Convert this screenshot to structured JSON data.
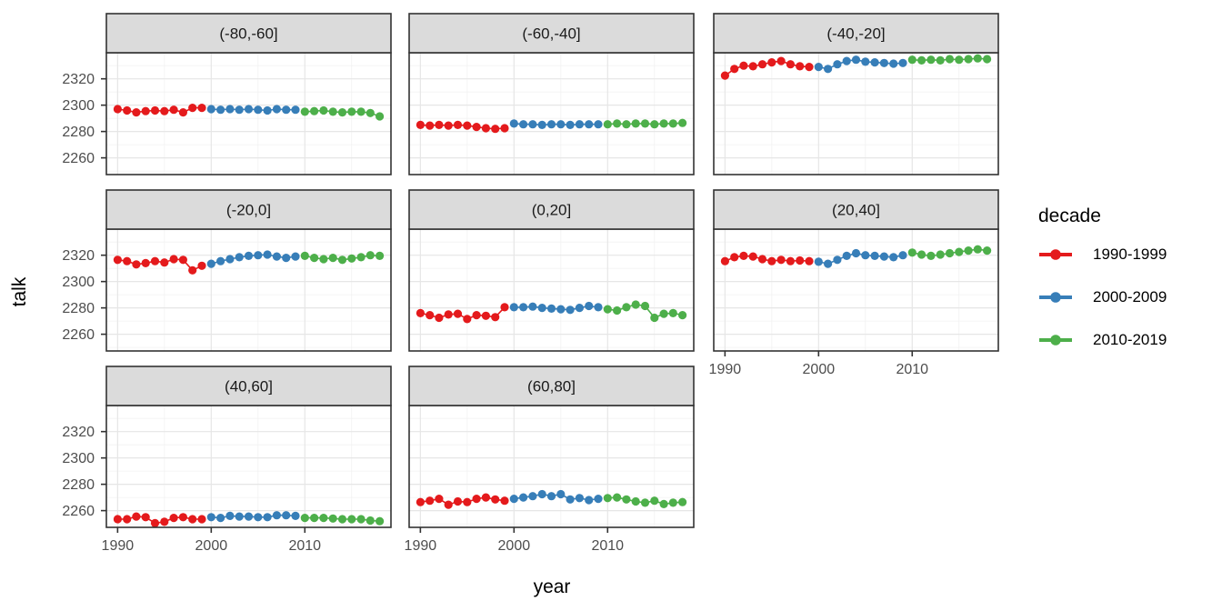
{
  "chart_data": {
    "type": "scatter",
    "title": "",
    "xlabel": "year",
    "ylabel": "talk",
    "xlim": [
      1988.8,
      2019.2
    ],
    "ylim": [
      2247.3,
      2339.8
    ],
    "x_ticks": [
      1990,
      2000,
      2010
    ],
    "x_minor": [
      1995,
      2005,
      2015
    ],
    "y_ticks": [
      2260,
      2280,
      2300,
      2320
    ],
    "y_minor": [
      2250,
      2270,
      2290,
      2310,
      2330
    ],
    "grid": "major+minor",
    "legend": {
      "title": "decade",
      "position": "right",
      "entries": [
        {
          "label": "1990-1999",
          "color": "#E41A1C"
        },
        {
          "label": "2000-2009",
          "color": "#377EB8"
        },
        {
          "label": "2010-2019",
          "color": "#4DAF4A"
        }
      ]
    },
    "facets": [
      {
        "label": "(-80,-60]",
        "series": [
          {
            "name": "1990-1999",
            "color": "#E41A1C",
            "x_start": 1990,
            "values": [
              2297,
              2296,
              2294.5,
              2295.5,
              2296,
              2295.5,
              2296.5,
              2294.5,
              2298,
              2298
            ]
          },
          {
            "name": "2000-2009",
            "color": "#377EB8",
            "x_start": 2000,
            "values": [
              2297,
              2296.5,
              2297,
              2296.5,
              2297,
              2296.5,
              2296,
              2297,
              2296.5,
              2296.5
            ]
          },
          {
            "name": "2010-2019",
            "color": "#4DAF4A",
            "x_start": 2010,
            "values": [
              2295,
              2295.5,
              2296,
              2295,
              2294.5,
              2295,
              2295,
              2294,
              2291.5
            ]
          }
        ]
      },
      {
        "label": "(-60,-40]",
        "series": [
          {
            "name": "1990-1999",
            "color": "#E41A1C",
            "x_start": 1990,
            "values": [
              2285,
              2284.5,
              2285,
              2284.5,
              2285,
              2284.5,
              2283.5,
              2282.5,
              2282,
              2282.5
            ]
          },
          {
            "name": "2000-2009",
            "color": "#377EB8",
            "x_start": 2000,
            "values": [
              2286,
              2285.5,
              2285.5,
              2285,
              2285.5,
              2285.5,
              2285,
              2285.5,
              2285.5,
              2285.5
            ]
          },
          {
            "name": "2010-2019",
            "color": "#4DAF4A",
            "x_start": 2010,
            "values": [
              2285.5,
              2286,
              2285.5,
              2286,
              2286,
              2285.5,
              2286,
              2286,
              2286.5
            ]
          }
        ]
      },
      {
        "label": "(-40,-20]",
        "series": [
          {
            "name": "1990-1999",
            "color": "#E41A1C",
            "x_start": 1990,
            "values": [
              2322.5,
              2327.5,
              2330,
              2329.5,
              2331,
              2332.5,
              2333.5,
              2331,
              2329.5,
              2329
            ]
          },
          {
            "name": "2000-2009",
            "color": "#377EB8",
            "x_start": 2000,
            "values": [
              2329,
              2327.5,
              2331,
              2333.5,
              2334.5,
              2333,
              2332.5,
              2332,
              2331.5,
              2332
            ]
          },
          {
            "name": "2010-2019",
            "color": "#4DAF4A",
            "x_start": 2010,
            "values": [
              2334.5,
              2334,
              2334.5,
              2334,
              2335,
              2334.5,
              2335,
              2335.5,
              2335
            ]
          }
        ]
      },
      {
        "label": "(-20,0]",
        "series": [
          {
            "name": "1990-1999",
            "color": "#E41A1C",
            "x_start": 1990,
            "values": [
              2316.5,
              2315.5,
              2313,
              2314,
              2315.5,
              2314.5,
              2317,
              2316.5,
              2308.5,
              2312
            ]
          },
          {
            "name": "2000-2009",
            "color": "#377EB8",
            "x_start": 2000,
            "values": [
              2313.5,
              2315.5,
              2317,
              2318.5,
              2319.5,
              2320,
              2320.5,
              2319,
              2318,
              2319
            ]
          },
          {
            "name": "2010-2019",
            "color": "#4DAF4A",
            "x_start": 2010,
            "values": [
              2319.5,
              2318,
              2317,
              2318,
              2316.5,
              2317.5,
              2318.5,
              2320,
              2319.5
            ]
          }
        ]
      },
      {
        "label": "(0,20]",
        "series": [
          {
            "name": "1990-1999",
            "color": "#E41A1C",
            "x_start": 1990,
            "values": [
              2276,
              2274.5,
              2272.5,
              2275,
              2275.5,
              2271.5,
              2274.5,
              2274,
              2273,
              2280.5
            ]
          },
          {
            "name": "2000-2009",
            "color": "#377EB8",
            "x_start": 2000,
            "values": [
              2280.5,
              2280.5,
              2281,
              2280,
              2279.5,
              2279,
              2278.5,
              2280,
              2281.5,
              2280.5
            ]
          },
          {
            "name": "2010-2019",
            "color": "#4DAF4A",
            "x_start": 2010,
            "values": [
              2279,
              2278,
              2280.5,
              2282.5,
              2281.5,
              2272.5,
              2275.5,
              2276,
              2274.5
            ]
          }
        ]
      },
      {
        "label": "(20,40]",
        "series": [
          {
            "name": "1990-1999",
            "color": "#E41A1C",
            "x_start": 1990,
            "values": [
              2315.5,
              2318.5,
              2319.5,
              2319,
              2317,
              2315.5,
              2316.5,
              2315.5,
              2316,
              2315.5
            ]
          },
          {
            "name": "2000-2009",
            "color": "#377EB8",
            "x_start": 2000,
            "values": [
              2315,
              2313.5,
              2316.5,
              2319.5,
              2321.5,
              2320,
              2319.5,
              2319,
              2318.5,
              2320
            ]
          },
          {
            "name": "2010-2019",
            "color": "#4DAF4A",
            "x_start": 2010,
            "values": [
              2322,
              2320.5,
              2319.5,
              2320.5,
              2321.5,
              2322.5,
              2323.5,
              2324.5,
              2323.5
            ]
          }
        ]
      },
      {
        "label": "(40,60]",
        "series": [
          {
            "name": "1990-1999",
            "color": "#E41A1C",
            "x_start": 1990,
            "values": [
              2253.5,
              2253.5,
              2255.5,
              2255,
              2250.5,
              2251.5,
              2254.5,
              2255,
              2253.5,
              2253.5
            ]
          },
          {
            "name": "2000-2009",
            "color": "#377EB8",
            "x_start": 2000,
            "values": [
              2255,
              2254.5,
              2256,
              2255.5,
              2255.5,
              2255,
              2255,
              2256.5,
              2256.5,
              2256
            ]
          },
          {
            "name": "2010-2019",
            "color": "#4DAF4A",
            "x_start": 2010,
            "values": [
              2254.5,
              2254.5,
              2254.5,
              2254,
              2253.5,
              2253.5,
              2253.5,
              2252.5,
              2252
            ]
          }
        ]
      },
      {
        "label": "(60,80]",
        "series": [
          {
            "name": "1990-1999",
            "color": "#E41A1C",
            "x_start": 1990,
            "values": [
              2266.5,
              2267.5,
              2269,
              2264.5,
              2267,
              2266.5,
              2269,
              2270,
              2268.5,
              2267.5
            ]
          },
          {
            "name": "2000-2009",
            "color": "#377EB8",
            "x_start": 2000,
            "values": [
              2269,
              2270,
              2271,
              2272.5,
              2271,
              2272.5,
              2268.5,
              2269.5,
              2268,
              2269
            ]
          },
          {
            "name": "2010-2019",
            "color": "#4DAF4A",
            "x_start": 2010,
            "values": [
              2269.5,
              2270,
              2268.5,
              2267,
              2266,
              2267.5,
              2265,
              2266,
              2266.5
            ]
          }
        ]
      }
    ]
  },
  "theme": {
    "strip_fill": "#DBDBDB",
    "border_color": "#333333",
    "grid_major": "#E6E6E6",
    "grid_minor": "#F2F2F2",
    "tick_label_color": "#4D4D4D",
    "strip_text_color": "#1A1A1A"
  }
}
